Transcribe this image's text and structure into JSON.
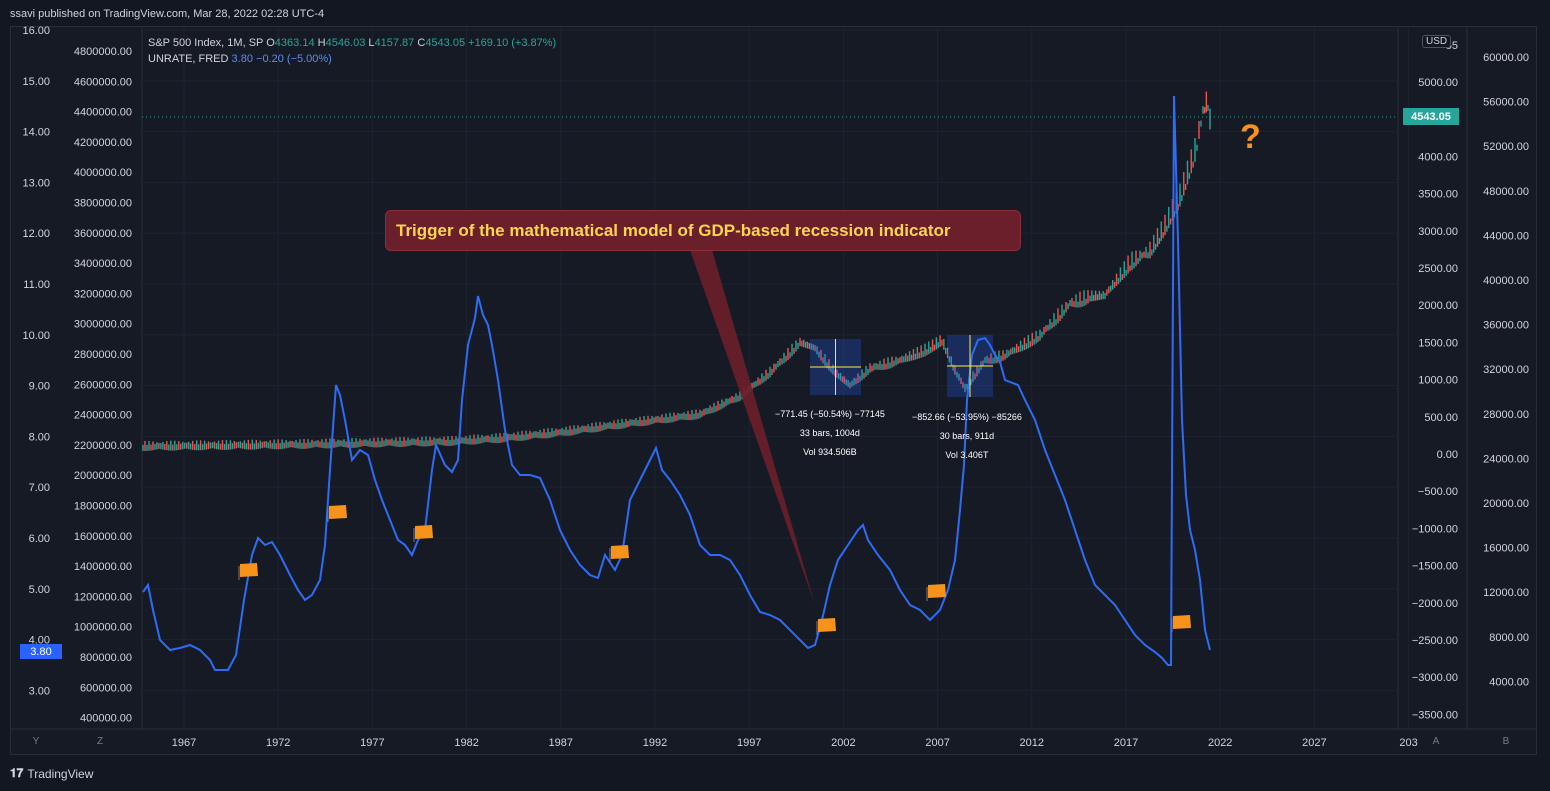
{
  "header": {
    "published": "ssavi published on TradingView.com, Mar 28, 2022 02:28 UTC-4"
  },
  "legend": {
    "spx": {
      "name": "S&P 500 Index, 1M, SP",
      "o_label": "O",
      "o": "4363.14",
      "h_label": "H",
      "h": "4546.03",
      "l_label": "L",
      "l": "4157.87",
      "c_label": "C",
      "c": "4543.05",
      "change": "+169.10 (+3.87%)"
    },
    "unrate": {
      "name": "UNRATE, FRED",
      "value": "3.80",
      "change": "−0.20 (−5.00%)"
    }
  },
  "annotation": {
    "text": "Trigger of the mathematical model of GDP-based recession indicator",
    "question": "?"
  },
  "price_tag": "4543.05",
  "unrate_tag": "3.80",
  "currency": "USD",
  "measurements": [
    {
      "line1": "−771.45 (−50.54%) −77145",
      "line2": "33 bars, 1004d",
      "line3": "Vol 934.506B"
    },
    {
      "line1": "−852.66 (−53.95%) −85266",
      "line2": "30 bars, 911d",
      "line3": "Vol 3.406T"
    }
  ],
  "axes": {
    "left_unrate": [
      "16.00",
      "15.00",
      "14.00",
      "13.00",
      "12.00",
      "11.00",
      "10.00",
      "9.00",
      "8.00",
      "7.00",
      "6.00",
      "5.00",
      "4.00",
      "3.00"
    ],
    "left_volume": [
      "4800000.00",
      "4600000.00",
      "4400000.00",
      "4200000.00",
      "4000000.00",
      "3800000.00",
      "3600000.00",
      "3400000.00",
      "3200000.00",
      "3000000.00",
      "2800000.00",
      "2600000.00",
      "2400000.00",
      "2200000.00",
      "2000000.00",
      "1800000.00",
      "1600000.00",
      "1400000.00",
      "1200000.00",
      "1000000.00",
      "800000.00",
      "600000.00",
      "400000.00"
    ],
    "right_price": [
      "55",
      "5000.00",
      "4500.00",
      "4000.00",
      "3500.00",
      "3000.00",
      "2500.00",
      "2000.00",
      "1500.00",
      "1000.00",
      "500.00",
      "0.00",
      "−500.00",
      "−1000.00",
      "−1500.00",
      "−2000.00",
      "−2500.00",
      "−3000.00",
      "−3500.00"
    ],
    "right_gdp": [
      "60000.00",
      "56000.00",
      "52000.00",
      "48000.00",
      "44000.00",
      "40000.00",
      "36000.00",
      "32000.00",
      "28000.00",
      "24000.00",
      "20000.00",
      "16000.00",
      "12000.00",
      "8000.00",
      "4000.00"
    ],
    "years": [
      "1967",
      "1972",
      "1977",
      "1982",
      "1987",
      "1992",
      "1997",
      "2002",
      "2007",
      "2012",
      "2017",
      "2022",
      "2027",
      "203"
    ],
    "buttons": [
      "Y",
      "Z",
      "A",
      "B"
    ]
  },
  "colors": {
    "unrate": "#2e6cf6",
    "up": "#26a69a",
    "down": "#ef5350",
    "flag": "#f7931a",
    "annotation_bg": "#6b1f2a",
    "annotation_text": "#ffd54f"
  },
  "footer": {
    "brand": "TradingView"
  }
}
